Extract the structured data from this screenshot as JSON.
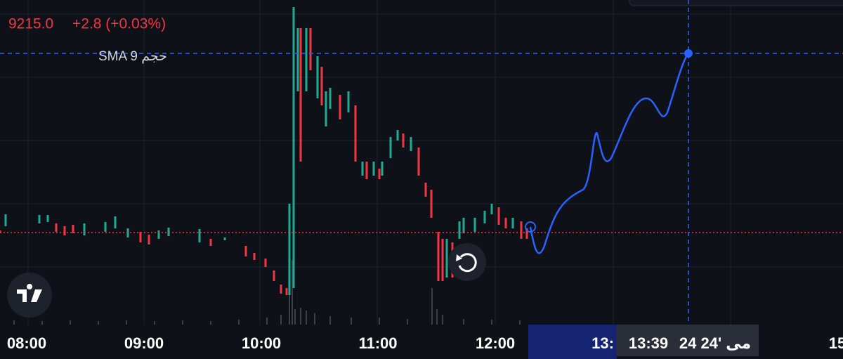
{
  "header": {
    "price": "9215.0",
    "change": "+2.8 (+0.03%)",
    "indicator": "حجم SMA 9"
  },
  "time_axis": {
    "labels": [
      "08:00",
      "09:00",
      "10:00",
      "11:00",
      "12:00",
      "13:",
      "15"
    ]
  },
  "crosshair": {
    "time": "13:39",
    "date": "24 مى '24"
  }
}
